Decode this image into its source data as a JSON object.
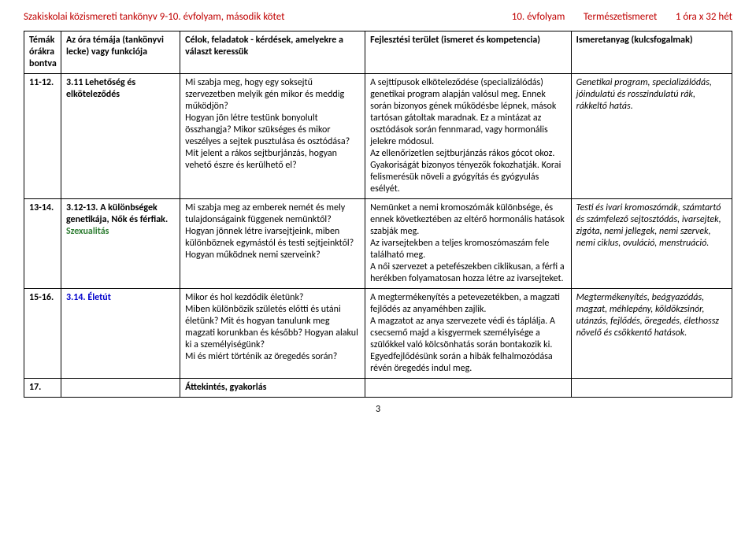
{
  "header": {
    "left": "Szakiskolai közismereti tankönyv 9-10. évfolyam, második kötet",
    "right_grade": "10. évfolyam",
    "right_subject": "Természetismeret",
    "right_hours": "1 óra x 32 hét"
  },
  "columns": {
    "c0": "Témák órákra bontva",
    "c1": "Az óra témája (tankönyvi lecke) vagy funkciója",
    "c2": "Célok, feladatok - kérdések, amelyekre a választ keressük",
    "c3": "Fejlesztési terület (ismeret és kompetencia)",
    "c4": "Ismeretanyag (kulcsfogalmak)"
  },
  "rows": [
    {
      "num": "11-12.",
      "topic_lead": "3.11 Lehetőség és elköteleződés",
      "topic_color": "topic-black",
      "goals": "Mi szabja meg, hogy egy soksejtű szervezetben melyik gén mikor és meddig működjön?\nHogyan jön létre testünk bonyolult összhangja? Mikor szükséges és mikor veszélyes a sejtek pusztulása és osztódása?\nMit jelent a rákos sejtburjánzás, hogyan vehető észre és kerülhető el?",
      "dev": "A sejttípusok elköteleződése (specializálódás) genetikai program alapján valósul meg. Ennek során bizonyos gének működésbe lépnek, mások tartósan gátoltak maradnak. Ez a mintázat az osztódások során fennmarad, vagy hormonális jelekre módosul.\nAz ellenőrizetlen sejtburjánzás rákos gócot okoz. Gyakoriságát bizonyos tényezők fokozhatják. Korai felismerésük növeli a gyógyítás és gyógyulás esélyét.",
      "keys": "Genetikai program, specializálódás, jóindulatú és rosszindulatú rák, rákkeltő hatás."
    },
    {
      "num": "13-14.",
      "topic_lead": "3.12-13.  A különbségek genetikája, Nők és férfiak. ",
      "topic_extra": "Szexualitás",
      "topic_color": "topic-green",
      "goals": "Mi szabja meg az emberek nemét és mely tulajdonságaink függenek nemünktől?\nHogyan jönnek létre ivarsejtjeink, miben különböznek egymástól és testi sejtjeinktől?\nHogyan működnek nemi szerveink?",
      "dev": "Nemünket a nemi kromoszómák különbsége, és ennek következtében az eltérő hormonális hatások szabják meg.\nAz ivarsejtekben a teljes kromoszómaszám fele található meg.\nA női szervezet a petefészekben ciklikusan, a férfi a herékben folyamatosan hozza létre az ivarsejteket.",
      "keys": "Testi és ivari kromoszómák, számtartó és számfelező sejtosztódás, ivarsejtek, zigóta, nemi jellegek, nemi szervek, nemi ciklus, ovuláció, menstruáció."
    },
    {
      "num": "15-16.",
      "topic_lead": "3.14.  Életút",
      "topic_color": "topic-blue",
      "goals": "Mikor és hol kezdődik életünk?\nMiben különbözik születés előtti és utáni életünk? Mit és hogyan tanulunk meg magzati korunkban és később? Hogyan alakul ki a személyiségünk?\nMi és miért történik az öregedés során?",
      "dev": "A megtermékenyítés a petevezetékben, a magzati fejlődés az anyaméhben zajlik.\nA magzatot az anya szervezete védi és táplálja. A csecsemő majd a kisgyermek személyisége a szülőkkel való kölcsönhatás során bontakozik ki.\nEgyedfejlődésünk során a hibák felhalmozódása révén öregedés indul meg.",
      "keys": "Megtermékenyítés, beágyazódás, magzat, méhlepény, köldökzsinór, utánzás, fejlődés, öregedés, élethossz növelő és csökkentő hatások."
    },
    {
      "num": "17.",
      "topic_lead": "",
      "topic_color": "topic-black",
      "goals_bold": "Áttekintés, gyakorlás",
      "dev": "",
      "keys": ""
    }
  ],
  "page_number": "3",
  "colors": {
    "red": "#c00000",
    "green": "#2e7d32",
    "blue": "#0000cc"
  }
}
